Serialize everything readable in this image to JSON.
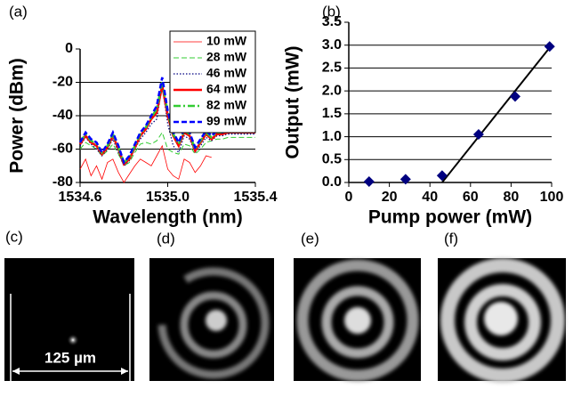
{
  "chart_data": [
    {
      "type": "line",
      "label": "(a)",
      "xlabel": "Wavelength (nm)",
      "ylabel": "Power (dBm)",
      "x": [
        1534.6,
        1534.625,
        1534.65,
        1534.675,
        1534.7,
        1534.725,
        1534.75,
        1534.775,
        1534.8,
        1534.825,
        1534.85,
        1534.875,
        1534.9,
        1534.925,
        1534.95,
        1534.975,
        1535,
        1535.025,
        1535.05,
        1535.075,
        1535.1,
        1535.125,
        1535.15,
        1535.175,
        1535.2,
        1535.225,
        1535.25,
        1535.275,
        1535.3,
        1535.325,
        1535.35,
        1535.375,
        1535.4
      ],
      "series": [
        {
          "name": "10 mW",
          "color": "#ff0000",
          "line_style": "solid",
          "line_width": 0.8,
          "values": [
            -72,
            -66,
            -76,
            -70,
            -78,
            -68,
            -66,
            -74,
            -80,
            -75,
            -70,
            -66,
            -68,
            -70,
            -64,
            -58,
            -72,
            -76,
            -78,
            -66,
            -68,
            -74,
            -70,
            -64,
            -65,
            null,
            null,
            null,
            null,
            null,
            null,
            null,
            null
          ]
        },
        {
          "name": "28 mW",
          "color": "#33cc33",
          "line_style": "dashed",
          "line_width": 1,
          "values": [
            -60,
            -56,
            -58,
            -60,
            -64,
            -61,
            -57,
            -63,
            -70,
            -68,
            -62,
            -57,
            -56,
            -57,
            -55,
            -50,
            -60,
            -62,
            -63,
            -57,
            -58,
            -63,
            -60,
            -56,
            -55,
            -54,
            -54,
            -53,
            -53,
            -53,
            -53,
            -53,
            -53
          ]
        },
        {
          "name": "46 mW",
          "color": "#000080",
          "line_style": "dotted",
          "line_width": 1.2,
          "values": [
            -58,
            -53,
            -57,
            -60,
            -64,
            -60,
            -54,
            -62,
            -70,
            -67,
            -60,
            -54,
            -50,
            -45,
            -42,
            -22,
            -45,
            -58,
            -62,
            -52,
            -54,
            -62,
            -58,
            -53,
            -55,
            -52,
            -52,
            -51,
            -51,
            -51,
            -51,
            -51,
            -51
          ]
        },
        {
          "name": "64 mW",
          "color": "#ff0000",
          "line_style": "solid",
          "line_width": 2.5,
          "values": [
            -57,
            -52,
            -56,
            -58,
            -63,
            -59,
            -52,
            -60,
            -69,
            -66,
            -59,
            -52,
            -48,
            -42,
            -38,
            -22,
            -40,
            -52,
            -58,
            -50,
            -52,
            -61,
            -56,
            -51,
            -54,
            -51,
            -51,
            -50,
            -50,
            -50,
            -50,
            -50,
            -50
          ]
        },
        {
          "name": "82 mW",
          "color": "#33cc33",
          "line_style": "dashdot",
          "line_width": 2.5,
          "values": [
            -56,
            -51,
            -55,
            -57,
            -62,
            -58,
            -51,
            -59,
            -68,
            -65,
            -58,
            -51,
            -47,
            -41,
            -36,
            -20,
            -38,
            -51,
            -57,
            -49,
            -51,
            -60,
            -55,
            -50,
            -53,
            -50,
            -50,
            -49,
            -49,
            -49,
            -49,
            -49,
            -49
          ]
        },
        {
          "name": "99 mW",
          "color": "#0000ff",
          "line_style": "dashed",
          "line_width": 2.5,
          "values": [
            -56,
            -50,
            -54,
            -56,
            -62,
            -57,
            -50,
            -58,
            -68,
            -64,
            -57,
            -50,
            -46,
            -40,
            -34,
            -17,
            -37,
            -50,
            -56,
            -48,
            -50,
            -59,
            -54,
            -49,
            -52,
            -49,
            -50,
            -48,
            -48,
            -48,
            -48,
            -48,
            -48
          ]
        }
      ],
      "xlim": [
        1534.6,
        1535.4
      ],
      "xticks": [
        1534.6,
        {
          "value": 1535,
          "label": "1535.0"
        },
        1535.4
      ],
      "ylim": [
        -80,
        0
      ],
      "yticks": [
        0,
        -20,
        -40,
        -60,
        -80
      ],
      "grid": true,
      "legend": "top-right"
    },
    {
      "type": "scatter",
      "label": "(b)",
      "xlabel": "Pump power (mW)",
      "ylabel": "Output (mW)",
      "x": [
        10,
        28,
        46,
        64,
        82,
        99
      ],
      "values": [
        0.02,
        0.07,
        0.15,
        1.05,
        1.88,
        2.97
      ],
      "color": "#000080",
      "fit": {
        "x": [
          46,
          100
        ],
        "values": [
          0,
          3.0
        ],
        "color": "#000000"
      },
      "xlim": [
        0,
        100
      ],
      "xticks": [
        0,
        20,
        40,
        60,
        80,
        100
      ],
      "ylim": [
        0,
        3.5
      ],
      "yticks": [
        {
          "value": 0,
          "label": "0.0"
        },
        0.5,
        {
          "value": 1,
          "label": "1.0"
        },
        1.5,
        {
          "value": 2,
          "label": "2.0"
        },
        2.5,
        {
          "value": 3,
          "label": "3.0"
        },
        3.5
      ],
      "grid": true
    }
  ],
  "panels": [
    {
      "label": "(c)",
      "scale_bar": "125 µm"
    },
    {
      "label": "(d)"
    },
    {
      "label": "(e)"
    },
    {
      "label": "(f)"
    }
  ]
}
